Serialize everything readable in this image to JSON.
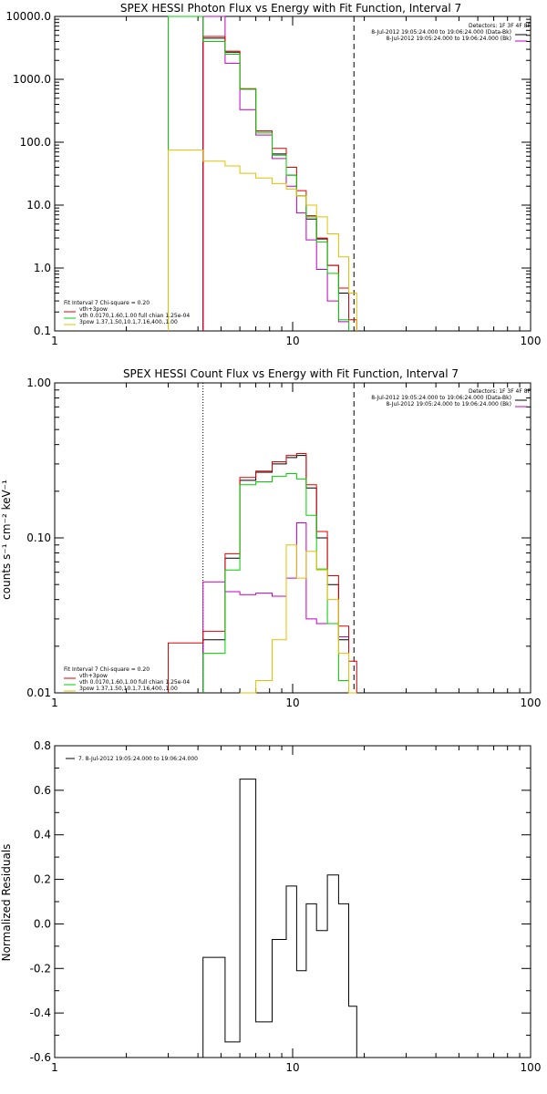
{
  "chart_data": [
    {
      "id": "photon",
      "type": "line",
      "title": "SPEX HESSI Photon Flux vs Energy with Fit Function, Interval 7",
      "xlabel": "",
      "ylabel": "",
      "x_scale": "log",
      "y_scale": "log",
      "xlim": [
        1,
        100
      ],
      "ylim": [
        0.1,
        10000
      ],
      "x_ticks": [
        1,
        10,
        100
      ],
      "x_tick_labels": [
        "1",
        "10",
        "100"
      ],
      "y_ticks": [
        0.1,
        1,
        10,
        100,
        1000,
        10000
      ],
      "y_tick_labels": [
        "0.1",
        "1.0",
        "10.0",
        "100.0",
        "1000.0",
        "10000.0"
      ],
      "vlines": [
        {
          "x": 4.2,
          "style": "solid",
          "color": "#c000c0"
        },
        {
          "x": 18.1,
          "style": "dashed",
          "color": "#000000"
        }
      ],
      "legend_top": {
        "header": "Detectors: 1F 3F 4F 8F",
        "entries": [
          {
            "label": "8-Jul-2012 19:05:24.000 to 19:06:24.000 (Data-Bk)",
            "color": "#000000"
          },
          {
            "label": "8-Jul-2012 19:05:24.000 to 19:06:24.000 (Bk)",
            "color": "#c000c0"
          }
        ]
      },
      "legend_bottom": {
        "header": "Fit Interval  7    Chi-square = 0.20",
        "entries": [
          {
            "label": "vth+3pow",
            "color": "#e00000"
          },
          {
            "label": "vth 0.0170,1.60,1.00  full chian 1.25e-04",
            "color": "#00d000"
          },
          {
            "label": "3pow 1.37,1.50,10.1,7.16,400.,1.00",
            "color": "#e0c000"
          }
        ]
      },
      "bin_edges": [
        3.0,
        4.2,
        5.2,
        6.0,
        7.0,
        8.2,
        9.4,
        10.4,
        11.4,
        12.6,
        14.0,
        15.6,
        17.2,
        18.6,
        20.4
      ],
      "series": [
        {
          "name": "black",
          "color": "#000000",
          "values": [
            null,
            4500,
            2700,
            700,
            150,
            65,
            30,
            14,
            6,
            2.9,
            1.1,
            0.4,
            null,
            null
          ]
        },
        {
          "name": "magenta",
          "color": "#c000c0",
          "values": [
            null,
            10000,
            1800,
            330,
            130,
            55,
            20,
            7.5,
            2.8,
            0.95,
            0.3,
            0.14,
            null,
            null
          ]
        },
        {
          "name": "red",
          "color": "#e00000",
          "values": [
            null,
            4800,
            2800,
            710,
            150,
            80,
            40,
            17,
            6.8,
            3.0,
            1.1,
            0.48,
            0.15,
            null
          ]
        },
        {
          "name": "green",
          "color": "#00d000",
          "values": [
            10000,
            4000,
            2500,
            700,
            140,
            62,
            30,
            14,
            6.5,
            2.6,
            0.82,
            0.15,
            null,
            null
          ]
        },
        {
          "name": "yellow",
          "color": "#e0c000",
          "values": [
            75,
            50,
            42,
            32,
            27,
            22,
            18,
            14,
            10,
            6.5,
            3.5,
            1.5,
            0.4,
            null
          ]
        }
      ]
    },
    {
      "id": "count",
      "type": "line",
      "title": "SPEX HESSI Count Flux vs Energy with Fit Function, Interval 7",
      "xlabel": "",
      "ylabel": "counts s⁻¹ cm⁻² keV⁻¹",
      "x_scale": "log",
      "y_scale": "log",
      "xlim": [
        1,
        100
      ],
      "ylim": [
        0.01,
        1
      ],
      "x_ticks": [
        1,
        10,
        100
      ],
      "x_tick_labels": [
        "1",
        "10",
        "100"
      ],
      "y_ticks": [
        0.01,
        0.1,
        1
      ],
      "y_tick_labels": [
        "0.01",
        "0.10",
        "1.00"
      ],
      "vlines": [
        {
          "x": 4.2,
          "style": "dotted",
          "color": "#000000"
        },
        {
          "x": 18.1,
          "style": "dashed",
          "color": "#000000"
        }
      ],
      "legend_top": {
        "header": "Detectors: 1F 3F 4F 8F",
        "entries": [
          {
            "label": "8-Jul-2012 19:05:24.000 to 19:06:24.000 (Data-Bk)",
            "color": "#000000"
          },
          {
            "label": "8-Jul-2012 19:05:24.000 to 19:06:24.000 (Bk)",
            "color": "#c000c0"
          }
        ]
      },
      "legend_bottom": {
        "header": "Fit Interval  7    Chi-square = 0.20",
        "entries": [
          {
            "label": "vth+3pow",
            "color": "#e00000"
          },
          {
            "label": "vth 0.0170,1.60,1.00  full chian 1.25e-04",
            "color": "#00d000"
          },
          {
            "label": "3pow 1.37,1.50,10.1,7.16,400.,1.00",
            "color": "#e0c000"
          }
        ]
      },
      "bin_edges": [
        3.0,
        4.2,
        5.2,
        6.0,
        7.0,
        8.2,
        9.4,
        10.4,
        11.4,
        12.6,
        14.0,
        15.6,
        17.2,
        18.6,
        20.4
      ],
      "series": [
        {
          "name": "black",
          "color": "#000000",
          "values": [
            null,
            0.022,
            0.074,
            0.235,
            0.265,
            0.3,
            0.33,
            0.34,
            0.21,
            0.1,
            0.05,
            0.022,
            null,
            null
          ]
        },
        {
          "name": "magenta",
          "color": "#c000c0",
          "values": [
            null,
            0.052,
            0.045,
            0.043,
            0.044,
            0.042,
            0.055,
            0.125,
            0.03,
            0.028,
            0.028,
            0.023,
            null,
            null
          ]
        },
        {
          "name": "red",
          "color": "#e00000",
          "values": [
            0.021,
            0.025,
            0.079,
            0.245,
            0.27,
            0.31,
            0.34,
            0.35,
            0.22,
            0.11,
            0.057,
            0.027,
            0.016,
            null
          ]
        },
        {
          "name": "green",
          "color": "#00d000",
          "values": [
            null,
            0.018,
            0.062,
            0.22,
            0.23,
            0.25,
            0.26,
            0.24,
            0.14,
            0.063,
            0.028,
            0.012,
            null,
            null
          ]
        },
        {
          "name": "yellow",
          "color": "#e0c000",
          "values": [
            null,
            null,
            null,
            0.006,
            0.012,
            0.022,
            0.09,
            0.055,
            0.082,
            0.062,
            0.04,
            0.018,
            0.008,
            null
          ]
        }
      ]
    },
    {
      "id": "residuals",
      "type": "line",
      "title": "",
      "xlabel": "",
      "ylabel": "Normalized Residuals",
      "x_scale": "log",
      "y_scale": "linear",
      "xlim": [
        1,
        100
      ],
      "ylim": [
        -0.6,
        0.8
      ],
      "x_ticks": [
        1,
        10,
        100
      ],
      "x_tick_labels": [
        "1",
        "10",
        "100"
      ],
      "y_ticks": [
        -0.6,
        -0.4,
        -0.2,
        0.0,
        0.2,
        0.4,
        0.6,
        0.8
      ],
      "y_tick_labels": [
        "-0.6",
        "-0.4",
        "-0.2",
        "0.0",
        "0.2",
        "0.4",
        "0.6",
        "0.8"
      ],
      "legend_top": {
        "header": "",
        "entries": [
          {
            "label": "7.  8-Jul-2012 19:05:24.000 to 19:06:24.000",
            "color": "#000000"
          }
        ]
      },
      "bin_edges": [
        4.2,
        5.2,
        6.0,
        7.0,
        8.2,
        9.4,
        10.4,
        11.4,
        12.6,
        14.0,
        15.6,
        17.2,
        18.6,
        20.4
      ],
      "series": [
        {
          "name": "residuals",
          "color": "#000000",
          "values": [
            -0.15,
            -0.53,
            0.65,
            -0.44,
            -0.07,
            0.17,
            -0.21,
            0.09,
            -0.03,
            0.22,
            0.09,
            -0.37,
            null
          ]
        }
      ]
    }
  ]
}
